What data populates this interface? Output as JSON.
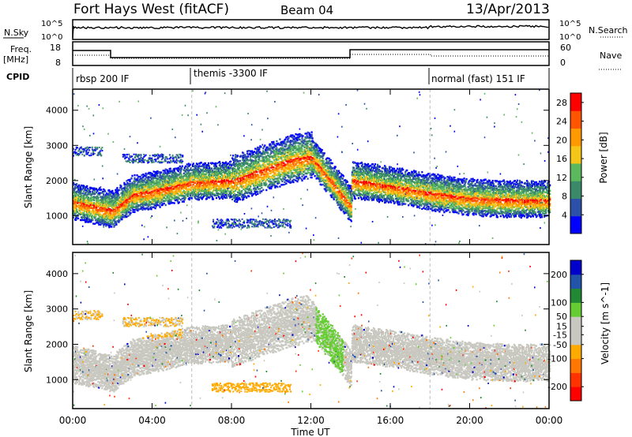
{
  "header": {
    "station": "Fort Hays West (fitACF)",
    "beam": "Beam 04",
    "date": "13/Apr/2013"
  },
  "panels": {
    "nsky": {
      "label": "N.Sky",
      "ticks": [
        "10^5",
        "10^0"
      ],
      "right_label": "N.Search",
      "right_ticks": [
        "10^5",
        "10^0"
      ]
    },
    "freq": {
      "label": "Freq.",
      "unit": "[MHz]",
      "ticks": [
        "18",
        "8"
      ],
      "right_label": "Nave",
      "right_ticks": [
        "60",
        "0"
      ]
    },
    "cpid": {
      "label": "CPID",
      "modes": [
        {
          "name": "rbsp 200 IF",
          "start_h": 0
        },
        {
          "name": "themis -3300 IF",
          "start_h": 6
        },
        {
          "name": "normal (fast) 151 IF",
          "start_h": 18
        }
      ]
    }
  },
  "colors": {
    "power": [
      "#0000ff",
      "#2d50a8",
      "#3a8a6a",
      "#5cb85c",
      "#f5c518",
      "#ff9900",
      "#ff5500",
      "#ff0000"
    ],
    "velocity": [
      "#ff0000",
      "#ff3300",
      "#ff7700",
      "#ffaa00",
      "#c8c8c0",
      "#c8c8c0",
      "#66cc33",
      "#228833",
      "#2255aa",
      "#0000cc"
    ]
  },
  "chart_data": [
    {
      "type": "heatmap",
      "title": "Power",
      "ylabel": "Slant Range [km]",
      "xlabel": "Time UT",
      "x_ticks": [
        "00:00",
        "04:00",
        "08:00",
        "12:00",
        "16:00",
        "20:00",
        "00:00"
      ],
      "y_ticks": [
        4000,
        3000,
        2000,
        1000
      ],
      "xlim_hours": [
        0,
        24
      ],
      "ylim_km": [
        180,
        4600
      ],
      "colorbar": {
        "label": "Power [dB]",
        "ticks": [
          28,
          24,
          20,
          16,
          12,
          8,
          4
        ],
        "range": [
          0,
          30
        ]
      },
      "echo_band_center_km": [
        [
          0,
          1450
        ],
        [
          2,
          1200
        ],
        [
          3,
          1650
        ],
        [
          4,
          1750
        ],
        [
          6,
          2000
        ],
        [
          8,
          2050
        ],
        [
          10,
          2450
        ],
        [
          11,
          2650
        ],
        [
          12,
          2750
        ],
        [
          13,
          2050
        ],
        [
          14,
          1350
        ],
        [
          14.05,
          2050
        ],
        [
          16,
          1900
        ],
        [
          18,
          1700
        ],
        [
          20,
          1550
        ],
        [
          22,
          1500
        ],
        [
          24,
          1500
        ]
      ],
      "secondary_echoes": [
        {
          "t_start": 0,
          "t_end": 1.5,
          "range_km": 2850
        },
        {
          "t_start": 2.5,
          "t_end": 5.5,
          "range_km": 2650
        },
        {
          "t_start": 7,
          "t_end": 11,
          "range_km": 800
        }
      ]
    },
    {
      "type": "heatmap",
      "title": "Velocity",
      "ylabel": "Slant Range [km]",
      "xlabel": "Time UT",
      "x_ticks": [
        "00:00",
        "04:00",
        "08:00",
        "12:00",
        "16:00",
        "20:00",
        "00:00"
      ],
      "y_ticks": [
        4000,
        3000,
        2000,
        1000
      ],
      "xlim_hours": [
        0,
        24
      ],
      "ylim_km": [
        180,
        4600
      ],
      "colorbar": {
        "label": "Velocity [m s^-1]",
        "ticks": [
          200,
          100,
          50,
          15,
          -15,
          -50,
          -100,
          -200
        ],
        "range": [
          -250,
          250
        ]
      }
    }
  ]
}
